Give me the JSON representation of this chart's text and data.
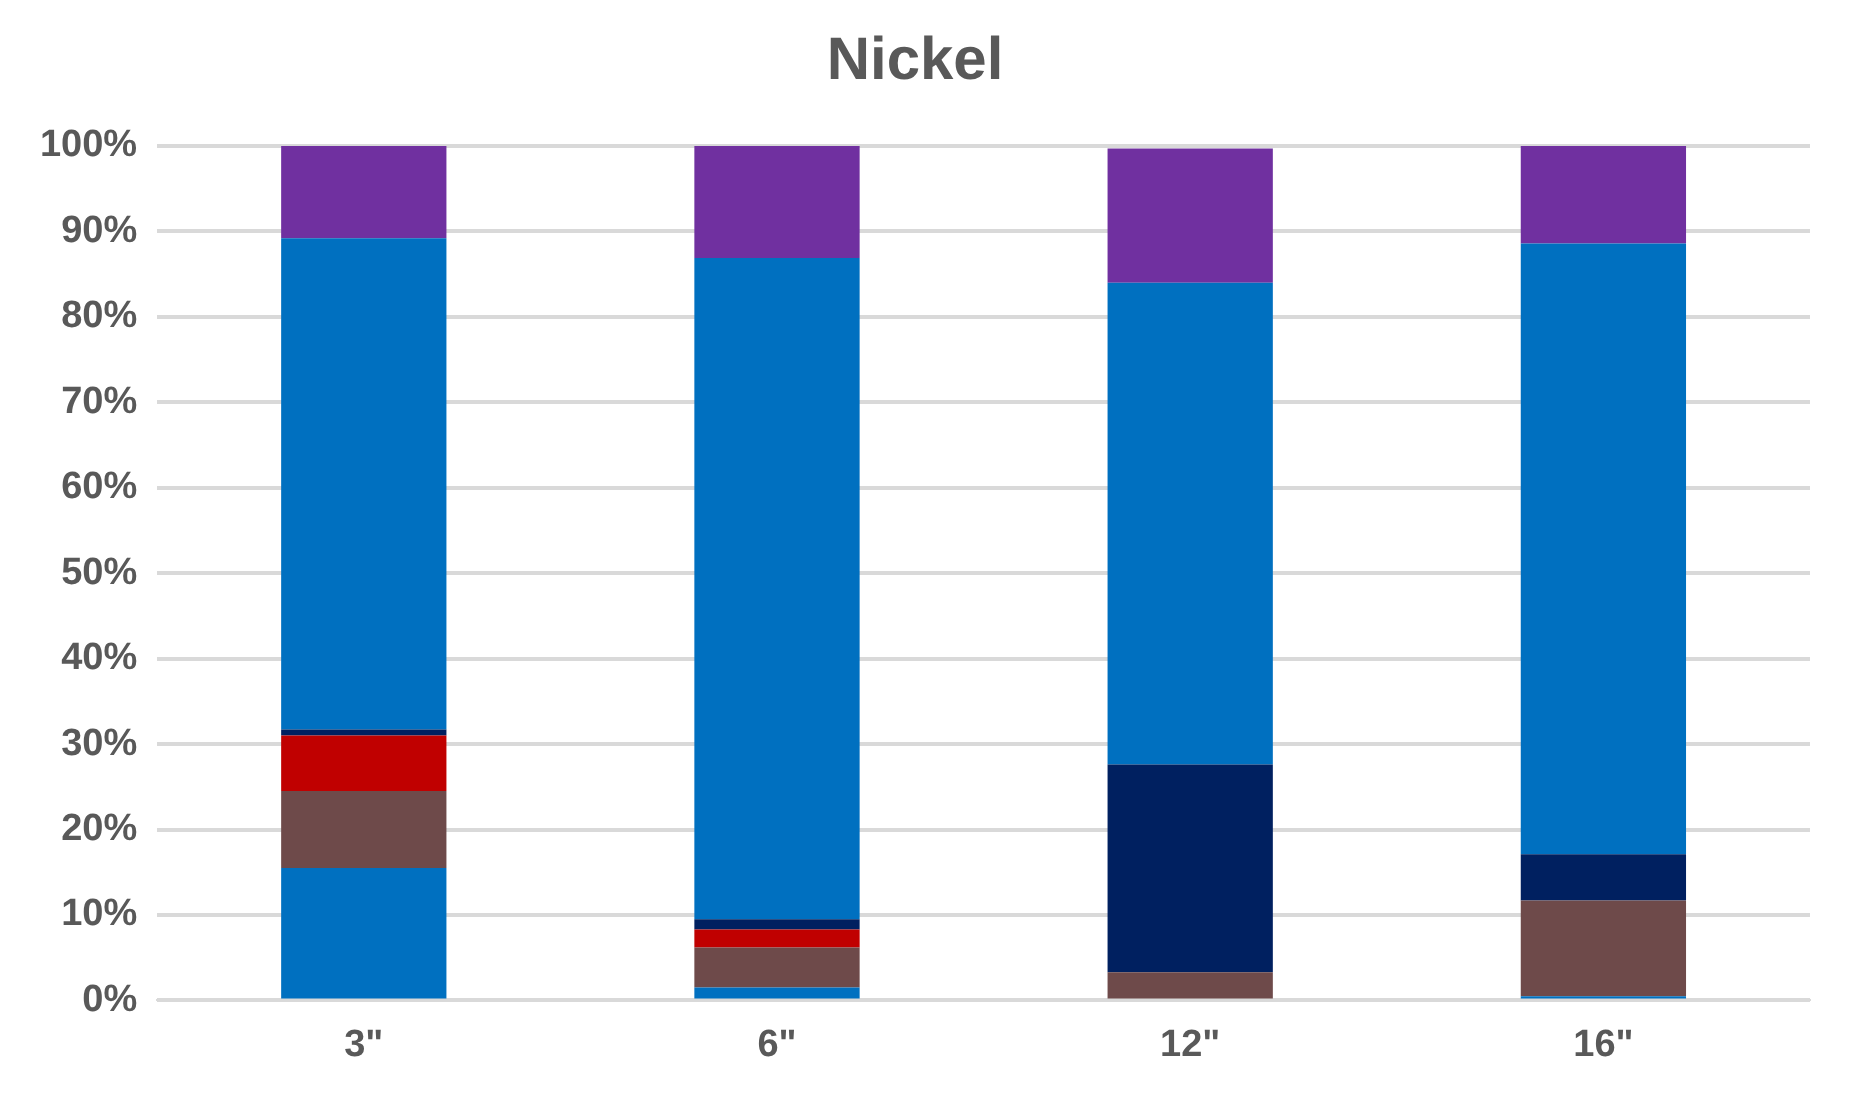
{
  "chart_data": {
    "type": "bar",
    "title": "Nickel",
    "stacked": true,
    "categories": [
      "3\"",
      "6\"",
      "12\"",
      "16\""
    ],
    "series": [
      {
        "color": "#0070c0",
        "values": [
          15.5,
          1.5,
          null,
          0.5
        ]
      },
      {
        "color": "#6e4a4a",
        "values": [
          9,
          4.7,
          3.3,
          11.2
        ]
      },
      {
        "color": "#c00000",
        "values": [
          6.5,
          2.1,
          0,
          0
        ]
      },
      {
        "color": "#002060",
        "values": [
          0.7,
          1.2,
          24.3,
          5.4
        ]
      },
      {
        "color": "#0070c0",
        "values": [
          57.5,
          77.4,
          56.4,
          71.5
        ]
      },
      {
        "color": "#7030a0",
        "values": [
          10.8,
          13.1,
          15.7,
          11.4
        ]
      }
    ],
    "ylim": [
      0,
      100
    ],
    "yticks": [
      {
        "value": 0,
        "label": "0%"
      },
      {
        "value": 10,
        "label": "10%"
      },
      {
        "value": 20,
        "label": "20%"
      },
      {
        "value": 30,
        "label": "30%"
      },
      {
        "value": 40,
        "label": "40%"
      },
      {
        "value": 50,
        "label": "50%"
      },
      {
        "value": 60,
        "label": "60%"
      },
      {
        "value": 70,
        "label": "70%"
      },
      {
        "value": 80,
        "label": "80%"
      },
      {
        "value": 90,
        "label": "90%"
      },
      {
        "value": 100,
        "label": "100%"
      }
    ],
    "grid": "y",
    "legend": false
  }
}
